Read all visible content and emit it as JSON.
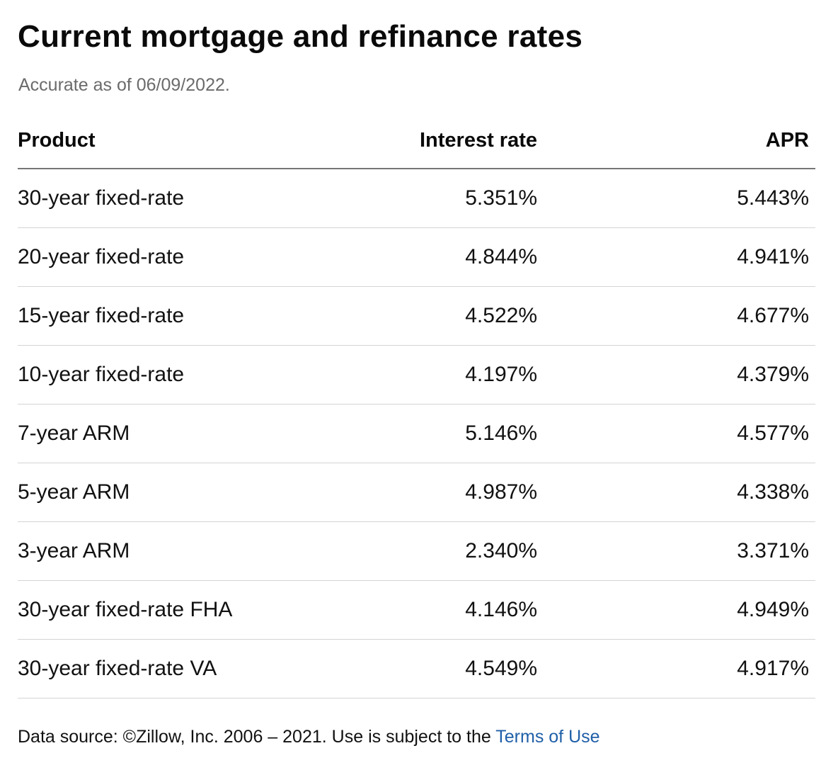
{
  "title": "Current mortgage and refinance rates",
  "subtitle": "Accurate as of 06/09/2022.",
  "table": {
    "headers": {
      "product": "Product",
      "interest_rate": "Interest rate",
      "apr": "APR"
    },
    "rows": [
      {
        "product": "30-year fixed-rate",
        "interest_rate": "5.351%",
        "apr": "5.443%"
      },
      {
        "product": "20-year fixed-rate",
        "interest_rate": "4.844%",
        "apr": "4.941%"
      },
      {
        "product": "15-year fixed-rate",
        "interest_rate": "4.522%",
        "apr": "4.677%"
      },
      {
        "product": "10-year fixed-rate",
        "interest_rate": "4.197%",
        "apr": "4.379%"
      },
      {
        "product": "7-year ARM",
        "interest_rate": "5.146%",
        "apr": "4.577%"
      },
      {
        "product": "5-year ARM",
        "interest_rate": "4.987%",
        "apr": "4.338%"
      },
      {
        "product": "3-year ARM",
        "interest_rate": "2.340%",
        "apr": "3.371%"
      },
      {
        "product": "30-year fixed-rate FHA",
        "interest_rate": "4.146%",
        "apr": "4.949%"
      },
      {
        "product": "30-year fixed-rate VA",
        "interest_rate": "4.549%",
        "apr": "4.917%"
      }
    ]
  },
  "footer": {
    "text": "Data source: ©Zillow, Inc. 2006 – 2021. Use is subject to the ",
    "link_label": "Terms of Use"
  },
  "colors": {
    "link": "#1f5fa8",
    "subtitle": "#6b6b6b",
    "header_rule": "#767676",
    "row_rule": "#d4d4d4"
  }
}
